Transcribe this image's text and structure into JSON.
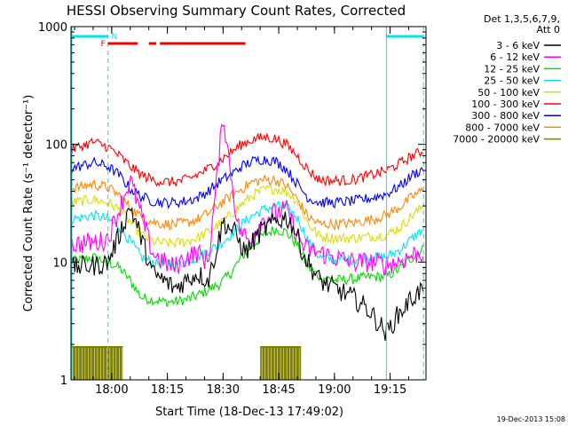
{
  "chart_data": {
    "type": "line",
    "title": "HESSI Observing Summary Count Rates, Corrected",
    "xlabel": "Start Time (18-Dec-13 17:49:02)",
    "ylabel": "Corrected Count Rate (s⁻¹ detector⁻¹)",
    "yscale": "log",
    "ylim": [
      1,
      1000
    ],
    "xlim": [
      "17:49:02",
      "19:24:40"
    ],
    "x_ticks": [
      "18:00",
      "18:15",
      "18:30",
      "18:45",
      "19:00",
      "19:15"
    ],
    "y_ticks": [
      "1",
      "10",
      "100",
      "1000"
    ],
    "legend_header": [
      "Det 1,3,5,6,7,9,",
      "Att 0"
    ],
    "legend_placement": "right",
    "footer": "19-Dec-2013 15:08",
    "markers": {
      "night_label": "N",
      "flare_label": "F",
      "night_intervals": [
        [
          "17:49",
          "17:59"
        ],
        [
          "19:14",
          "19:24"
        ]
      ],
      "flare_segments": [
        [
          "17:59",
          "18:07"
        ],
        [
          "18:10",
          "18:12"
        ],
        [
          "18:13",
          "18:18"
        ],
        [
          "18:18",
          "18:36"
        ]
      ]
    },
    "saa_intervals": [
      [
        "17:49",
        "18:03"
      ],
      [
        "18:40",
        "18:51"
      ]
    ],
    "series": [
      {
        "name": "3 - 6 keV",
        "color": "#000000",
        "points": [
          [
            "17:49",
            9
          ],
          [
            "17:57",
            9.5
          ],
          [
            "17:59",
            10
          ],
          [
            "18:02",
            17
          ],
          [
            "18:05",
            30
          ],
          [
            "18:08",
            16
          ],
          [
            "18:11",
            8
          ],
          [
            "18:14",
            7
          ],
          [
            "18:17",
            6
          ],
          [
            "18:20",
            7
          ],
          [
            "18:23",
            8
          ],
          [
            "18:26",
            7
          ],
          [
            "18:28",
            12
          ],
          [
            "18:30",
            22
          ],
          [
            "18:33",
            18
          ],
          [
            "18:36",
            12
          ],
          [
            "18:40",
            18
          ],
          [
            "18:44",
            22
          ],
          [
            "18:47",
            24
          ],
          [
            "18:49",
            20
          ],
          [
            "18:52",
            11
          ],
          [
            "18:56",
            7
          ],
          [
            "19:00",
            6
          ],
          [
            "19:05",
            5
          ],
          [
            "19:09",
            4
          ],
          [
            "19:12",
            3
          ],
          [
            "19:14",
            2.5
          ],
          [
            "19:17",
            3.5
          ],
          [
            "19:21",
            5
          ],
          [
            "19:24",
            6
          ]
        ]
      },
      {
        "name": "6 - 12 keV",
        "color": "#ff00ff",
        "points": [
          [
            "17:49",
            14
          ],
          [
            "17:57",
            15
          ],
          [
            "17:59",
            16
          ],
          [
            "18:02",
            28
          ],
          [
            "18:05",
            50
          ],
          [
            "18:08",
            25
          ],
          [
            "18:11",
            12
          ],
          [
            "18:14",
            10
          ],
          [
            "18:17",
            9
          ],
          [
            "18:20",
            11
          ],
          [
            "18:23",
            12
          ],
          [
            "18:26",
            10
          ],
          [
            "18:28",
            40
          ],
          [
            "18:30",
            180
          ],
          [
            "18:32",
            60
          ],
          [
            "18:34",
            20
          ],
          [
            "18:37",
            15
          ],
          [
            "18:40",
            22
          ],
          [
            "18:44",
            26
          ],
          [
            "18:47",
            28
          ],
          [
            "18:49",
            20
          ],
          [
            "18:52",
            13
          ],
          [
            "18:56",
            12
          ],
          [
            "19:00",
            11
          ],
          [
            "19:05",
            10
          ],
          [
            "19:10",
            10
          ],
          [
            "19:14",
            9.5
          ],
          [
            "19:17",
            10
          ],
          [
            "19:21",
            11.5
          ],
          [
            "19:24",
            12
          ]
        ]
      },
      {
        "name": "12 - 25 keV",
        "color": "#00dd00",
        "points": [
          [
            "17:49",
            10
          ],
          [
            "17:55",
            11
          ],
          [
            "17:59",
            10
          ],
          [
            "18:02",
            9
          ],
          [
            "18:05",
            7
          ],
          [
            "18:08",
            5
          ],
          [
            "18:11",
            4.8
          ],
          [
            "18:14",
            4.6
          ],
          [
            "18:17",
            4.6
          ],
          [
            "18:20",
            4.8
          ],
          [
            "18:23",
            5.2
          ],
          [
            "18:26",
            5.8
          ],
          [
            "18:29",
            6.5
          ],
          [
            "18:32",
            8
          ],
          [
            "18:35",
            11
          ],
          [
            "18:38",
            14
          ],
          [
            "18:41",
            17
          ],
          [
            "18:44",
            19
          ],
          [
            "18:47",
            18
          ],
          [
            "18:50",
            14
          ],
          [
            "18:53",
            9
          ],
          [
            "18:56",
            7.5
          ],
          [
            "19:00",
            7
          ],
          [
            "19:05",
            7.2
          ],
          [
            "19:10",
            7.5
          ],
          [
            "19:14",
            7.5
          ],
          [
            "19:18",
            9
          ],
          [
            "19:21",
            11
          ],
          [
            "19:24",
            13
          ]
        ]
      },
      {
        "name": "25 - 50 keV",
        "color": "#00e5ee",
        "points": [
          [
            "17:49",
            23
          ],
          [
            "17:55",
            25
          ],
          [
            "17:59",
            23
          ],
          [
            "18:02",
            20
          ],
          [
            "18:05",
            15
          ],
          [
            "18:08",
            11
          ],
          [
            "18:11",
            10
          ],
          [
            "18:14",
            9.5
          ],
          [
            "18:17",
            9.5
          ],
          [
            "18:20",
            10
          ],
          [
            "18:23",
            11
          ],
          [
            "18:26",
            12.5
          ],
          [
            "18:29",
            14
          ],
          [
            "18:32",
            17
          ],
          [
            "18:35",
            21
          ],
          [
            "18:38",
            25
          ],
          [
            "18:41",
            28
          ],
          [
            "18:44",
            30
          ],
          [
            "18:47",
            29
          ],
          [
            "18:50",
            24
          ],
          [
            "18:53",
            15
          ],
          [
            "18:56",
            11
          ],
          [
            "19:00",
            10.5
          ],
          [
            "19:05",
            10.5
          ],
          [
            "19:10",
            11
          ],
          [
            "19:14",
            11
          ],
          [
            "19:18",
            13
          ],
          [
            "19:21",
            16
          ],
          [
            "19:24",
            19
          ]
        ]
      },
      {
        "name": "50 - 100 keV",
        "color": "#dddd00",
        "points": [
          [
            "17:49",
            32
          ],
          [
            "17:55",
            34
          ],
          [
            "17:59",
            32
          ],
          [
            "18:02",
            28
          ],
          [
            "18:05",
            22
          ],
          [
            "18:08",
            17
          ],
          [
            "18:11",
            15
          ],
          [
            "18:14",
            14.5
          ],
          [
            "18:17",
            14.5
          ],
          [
            "18:20",
            15
          ],
          [
            "18:23",
            16
          ],
          [
            "18:26",
            18
          ],
          [
            "18:29",
            21
          ],
          [
            "18:32",
            25
          ],
          [
            "18:35",
            31
          ],
          [
            "18:38",
            37
          ],
          [
            "18:41",
            41
          ],
          [
            "18:44",
            42
          ],
          [
            "18:47",
            40
          ],
          [
            "18:50",
            33
          ],
          [
            "18:53",
            21
          ],
          [
            "18:56",
            16.5
          ],
          [
            "19:00",
            16
          ],
          [
            "19:05",
            16
          ],
          [
            "19:10",
            16.5
          ],
          [
            "19:14",
            17
          ],
          [
            "19:18",
            20
          ],
          [
            "19:21",
            25
          ],
          [
            "19:24",
            30
          ]
        ]
      },
      {
        "name": "100 - 300 keV",
        "color": "#ff0000",
        "points": [
          [
            "17:49",
            90
          ],
          [
            "17:55",
            105
          ],
          [
            "17:59",
            95
          ],
          [
            "18:02",
            80
          ],
          [
            "18:05",
            65
          ],
          [
            "18:08",
            55
          ],
          [
            "18:11",
            50
          ],
          [
            "18:14",
            48
          ],
          [
            "18:17",
            48
          ],
          [
            "18:20",
            50
          ],
          [
            "18:23",
            55
          ],
          [
            "18:26",
            62
          ],
          [
            "18:29",
            72
          ],
          [
            "18:32",
            85
          ],
          [
            "18:35",
            100
          ],
          [
            "18:38",
            110
          ],
          [
            "18:41",
            115
          ],
          [
            "18:44",
            112
          ],
          [
            "18:47",
            100
          ],
          [
            "18:50",
            80
          ],
          [
            "18:53",
            60
          ],
          [
            "18:56",
            50
          ],
          [
            "19:00",
            49
          ],
          [
            "19:05",
            50
          ],
          [
            "19:10",
            55
          ],
          [
            "19:14",
            60
          ],
          [
            "19:18",
            70
          ],
          [
            "19:21",
            80
          ],
          [
            "19:24",
            88
          ]
        ]
      },
      {
        "name": "300 - 800 keV",
        "color": "#0000ff",
        "points": [
          [
            "17:49",
            62
          ],
          [
            "17:55",
            70
          ],
          [
            "17:59",
            65
          ],
          [
            "18:02",
            55
          ],
          [
            "18:05",
            42
          ],
          [
            "18:08",
            36
          ],
          [
            "18:11",
            33
          ],
          [
            "18:14",
            32
          ],
          [
            "18:17",
            32
          ],
          [
            "18:20",
            33
          ],
          [
            "18:23",
            35
          ],
          [
            "18:26",
            40
          ],
          [
            "18:29",
            48
          ],
          [
            "18:32",
            55
          ],
          [
            "18:35",
            65
          ],
          [
            "18:38",
            72
          ],
          [
            "18:41",
            75
          ],
          [
            "18:44",
            72
          ],
          [
            "18:47",
            62
          ],
          [
            "18:50",
            46
          ],
          [
            "18:53",
            35
          ],
          [
            "18:56",
            32
          ],
          [
            "19:00",
            32
          ],
          [
            "19:05",
            33
          ],
          [
            "19:10",
            35
          ],
          [
            "19:14",
            38
          ],
          [
            "19:18",
            45
          ],
          [
            "19:21",
            55
          ],
          [
            "19:24",
            62
          ]
        ]
      },
      {
        "name": "800 - 7000 keV",
        "color": "#ff8800",
        "points": [
          [
            "17:49",
            42
          ],
          [
            "17:55",
            46
          ],
          [
            "17:59",
            43
          ],
          [
            "18:02",
            37
          ],
          [
            "18:05",
            29
          ],
          [
            "18:08",
            24
          ],
          [
            "18:11",
            22
          ],
          [
            "18:14",
            21
          ],
          [
            "18:17",
            21
          ],
          [
            "18:20",
            21.5
          ],
          [
            "18:23",
            23
          ],
          [
            "18:26",
            26
          ],
          [
            "18:29",
            31
          ],
          [
            "18:32",
            36
          ],
          [
            "18:35",
            42
          ],
          [
            "18:38",
            48
          ],
          [
            "18:41",
            50
          ],
          [
            "18:44",
            50
          ],
          [
            "18:47",
            45
          ],
          [
            "18:50",
            34
          ],
          [
            "18:53",
            24
          ],
          [
            "18:56",
            21
          ],
          [
            "19:00",
            21
          ],
          [
            "19:05",
            21.5
          ],
          [
            "19:10",
            23
          ],
          [
            "19:14",
            25
          ],
          [
            "19:18",
            30
          ],
          [
            "19:21",
            36
          ],
          [
            "19:24",
            41
          ]
        ]
      },
      {
        "name": "7000 - 20000 keV",
        "color": "#808000",
        "points": []
      }
    ]
  }
}
